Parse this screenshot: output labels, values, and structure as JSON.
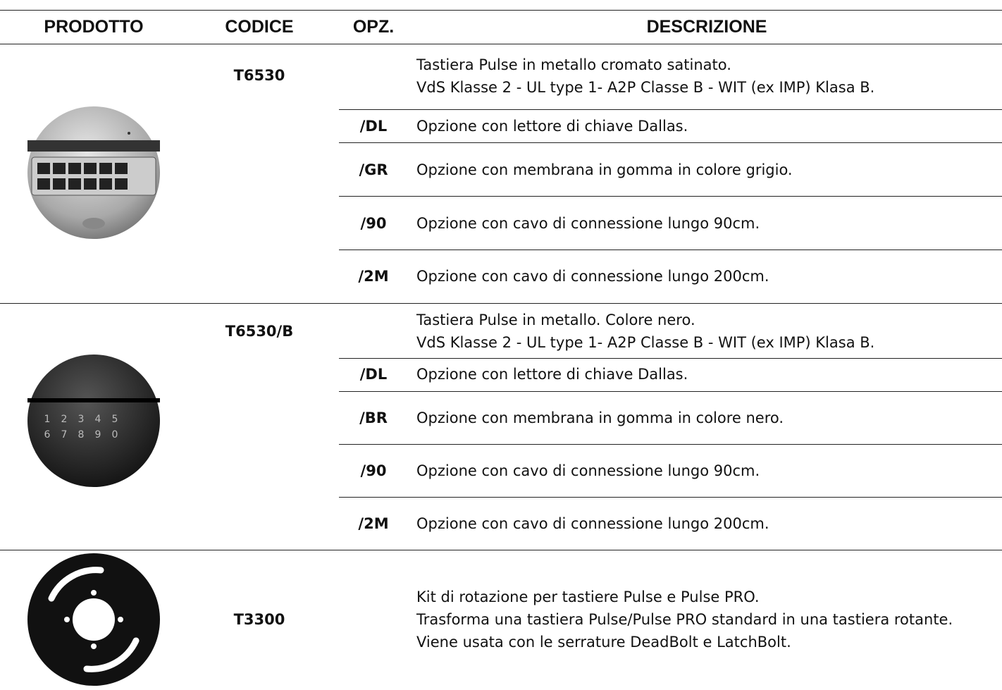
{
  "header": {
    "columns": [
      "PRODOTTO",
      "CODICE",
      "OPZ.",
      "DESCRIZIONE"
    ]
  },
  "groups": [
    {
      "code": "T6530",
      "rows": [
        {
          "description": [
            "Tastiera Pulse in metallo cromato satinato.",
            "VdS Klasse 2 - UL type 1- A2P Classe B - WIT (ex IMP) Klasa B."
          ]
        },
        {
          "option": "/DL",
          "description": [
            "Opzione con lettore di chiave Dallas."
          ]
        },
        {
          "option": "/GR",
          "description": [
            "Opzione con membrana in gomma in colore grigio."
          ]
        },
        {
          "option": "/90",
          "description": [
            "Opzione con cavo di connessione lungo 90cm."
          ]
        },
        {
          "option": "/2M",
          "description": [
            "Opzione con cavo di connessione lungo 200cm."
          ]
        }
      ]
    },
    {
      "code": "T6530/B",
      "rows": [
        {
          "description": [
            "Tastiera Pulse in metallo. Colore nero.",
            "VdS Klasse 2 - UL type 1- A2P Classe B - WIT (ex IMP) Klasa B."
          ]
        },
        {
          "option": "/DL",
          "description": [
            "Opzione con lettore di chiave Dallas."
          ]
        },
        {
          "option": "/BR",
          "description": [
            "Opzione con membrana in gomma in colore nero."
          ]
        },
        {
          "option": "/90",
          "description": [
            "Opzione con cavo di connessione lungo 90cm."
          ]
        },
        {
          "option": "/2M",
          "description": [
            "Opzione con cavo di connessione lungo 200cm."
          ]
        }
      ]
    },
    {
      "code": "T3300",
      "rows": [
        {
          "description": [
            "Kit di rotazione per tastiere Pulse e Pulse PRO.",
            "Trasforma una tastiera Pulse/Pulse PRO standard in una tastiera rotante.",
            "Viene usata con le serrature DeadBolt e LatchBolt."
          ]
        }
      ]
    }
  ]
}
